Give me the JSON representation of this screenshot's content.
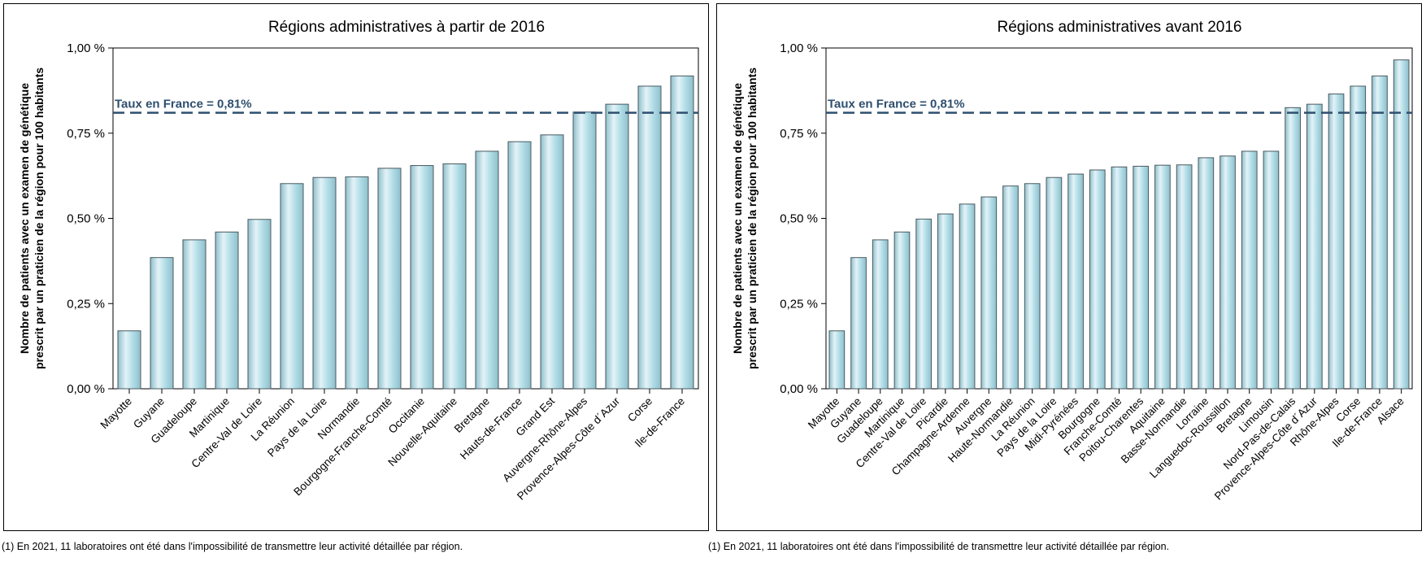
{
  "colors": {
    "bar_light": "#e3f3f8",
    "bar_mid": "#b2dde7",
    "bar_dark": "#8fbfcb",
    "bar_stroke": "#4a5a60",
    "reference_line": "#2f4f6f",
    "axis": "#000000"
  },
  "reference": {
    "label": "Taux en France =  0,81%",
    "value": 0.81
  },
  "ytick_labels": [
    "0,00 %",
    "0,25 %",
    "0,50 %",
    "0,75 %",
    "1,00 %"
  ],
  "footnotes": [
    "(1) En 2021, 11 laboratoires ont été dans l'impossibilité de transmettre leur activité détaillée par région.",
    "(1) En 2021, 11 laboratoires ont été dans l'impossibilité de transmettre leur activité détaillée par région."
  ],
  "chart_data": [
    {
      "type": "bar",
      "title": "Régions administratives à partir de 2016",
      "xlabel": "",
      "ylabel_lines": [
        "Nombre de patients avec un examen de génétique",
        "prescrit par un praticien de la région pour 100 habitants"
      ],
      "ylim": [
        0,
        1.0
      ],
      "yticks": [
        0,
        0.25,
        0.5,
        0.75,
        1.0
      ],
      "grid": false,
      "reference_line": 0.81,
      "categories": [
        "Mayotte",
        "Guyane",
        "Guadeloupe",
        "Martinique",
        "Centre-Val de Loire",
        "La Réunion",
        "Pays de la Loire",
        "Normandie",
        "Bourgogne-Franche-Comté",
        "Occitanie",
        "Nouvelle-Aquitaine",
        "Bretagne",
        "Hauts-de-France",
        "Grand Est",
        "Auvergne-Rhône-Alpes",
        "Provence-Alpes-Côte d´Azur",
        "Corse",
        "Ile-de-France"
      ],
      "values": [
        0.17,
        0.385,
        0.437,
        0.46,
        0.497,
        0.602,
        0.62,
        0.622,
        0.647,
        0.655,
        0.66,
        0.697,
        0.725,
        0.745,
        0.812,
        0.835,
        0.888,
        0.918
      ]
    },
    {
      "type": "bar",
      "title": "Régions administratives avant 2016",
      "xlabel": "",
      "ylabel_lines": [
        "Nombre de patients avec un examen de génétique",
        "prescrit par un praticien de la région pour 100 habitants"
      ],
      "ylim": [
        0,
        1.0
      ],
      "yticks": [
        0,
        0.25,
        0.5,
        0.75,
        1.0
      ],
      "grid": false,
      "reference_line": 0.81,
      "categories": [
        "Mayotte",
        "Guyane",
        "Guadeloupe",
        "Martinique",
        "Centre-Val de Loire",
        "Picardie",
        "Champagne-Ardenne",
        "Auvergne",
        "Haute-Normandie",
        "La Réunion",
        "Pays de la Loire",
        "Midi-Pyrénées",
        "Bourgogne",
        "Franche-Comté",
        "Poitou-Charentes",
        "Aquitaine",
        "Basse-Normandie",
        "Lorraine",
        "Languedoc-Roussillon",
        "Bretagne",
        "Limousin",
        "Nord-Pas-de-Calais",
        "Provence-Alpes-Côte d´Azur",
        "Rhône-Alpes",
        "Corse",
        "Ile-de-France",
        "Alsace"
      ],
      "values": [
        0.17,
        0.385,
        0.437,
        0.46,
        0.498,
        0.513,
        0.542,
        0.563,
        0.595,
        0.602,
        0.62,
        0.63,
        0.642,
        0.651,
        0.653,
        0.656,
        0.657,
        0.678,
        0.683,
        0.697,
        0.697,
        0.825,
        0.835,
        0.865,
        0.888,
        0.918,
        0.965
      ]
    }
  ]
}
